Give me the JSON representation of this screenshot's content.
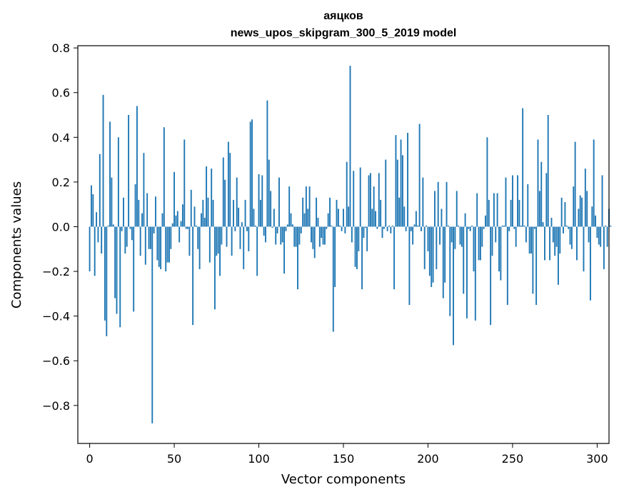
{
  "chart_data": {
    "type": "bar",
    "title": "аяцков",
    "subtitle": "news_upos_skipgram_300_5_2019 model",
    "xlabel": "Vector components",
    "ylabel": "Components values",
    "xlim": [
      -7,
      307
    ],
    "ylim": [
      -0.97,
      0.81
    ],
    "xticks": [
      0,
      50,
      100,
      150,
      200,
      250,
      300
    ],
    "xtick_labels": [
      "0",
      "50",
      "100",
      "150",
      "200",
      "250",
      "300"
    ],
    "yticks": [
      -0.8,
      -0.6,
      -0.4,
      -0.2,
      0.0,
      0.2,
      0.4,
      0.6,
      0.8
    ],
    "ytick_labels": [
      "−0.8",
      "−0.6",
      "−0.4",
      "−0.2",
      "0.0",
      "0.2",
      "0.4",
      "0.6",
      "0.8"
    ],
    "bar_color": "#1f77b4",
    "values": [
      -0.2,
      0.185,
      0.145,
      -0.22,
      0.065,
      -0.07,
      0.325,
      -0.12,
      0.59,
      -0.42,
      -0.49,
      0.005,
      0.47,
      0.22,
      0.01,
      -0.32,
      -0.39,
      0.4,
      -0.45,
      -0.02,
      0.13,
      -0.12,
      -0.09,
      0.5,
      -0.01,
      -0.06,
      -0.38,
      0.19,
      0.54,
      0.12,
      -0.13,
      0.06,
      0.33,
      -0.17,
      0.15,
      -0.1,
      -0.1,
      -0.88,
      -0.03,
      0.135,
      -0.15,
      -0.18,
      -0.19,
      0.06,
      0.445,
      -0.2,
      -0.16,
      -0.16,
      -0.1,
      0.015,
      0.245,
      0.05,
      0.07,
      -0.07,
      0.025,
      0.1,
      0.39,
      -0.01,
      -0.01,
      -0.13,
      0.165,
      -0.44,
      0.09,
      0.005,
      -0.1,
      -0.19,
      0.06,
      0.12,
      0.04,
      0.27,
      0.13,
      -0.16,
      0.26,
      0.12,
      -0.37,
      -0.13,
      -0.12,
      -0.22,
      -0.08,
      0.31,
      0.21,
      -0.09,
      0.38,
      0.33,
      -0.13,
      0.12,
      -0.02,
      0.22,
      0.085,
      -0.1,
      0.02,
      -0.19,
      0.12,
      -0.02,
      -0.11,
      0.47,
      0.48,
      0.08,
      0.005,
      -0.22,
      0.235,
      0.12,
      0.23,
      -0.04,
      -0.07,
      0.565,
      0.3,
      0.16,
      -0.005,
      0.08,
      -0.08,
      -0.03,
      0.22,
      -0.08,
      -0.07,
      -0.21,
      -0.02,
      0.01,
      0.18,
      0.06,
      0.01,
      -0.09,
      -0.09,
      -0.28,
      -0.08,
      -0.03,
      0.13,
      0.06,
      0.18,
      0.08,
      0.18,
      -0.07,
      -0.1,
      -0.14,
      0.13,
      0.04,
      -0.09,
      -0.05,
      -0.08,
      -0.08,
      -0.01,
      0.06,
      0.13,
      0.005,
      -0.47,
      -0.27,
      0.12,
      0.08,
      0.005,
      -0.02,
      0.08,
      -0.03,
      0.29,
      0.09,
      0.72,
      -0.07,
      0.25,
      -0.18,
      -0.19,
      -0.11,
      0.265,
      -0.28,
      -0.05,
      -0.005,
      -0.11,
      0.23,
      0.24,
      0.08,
      0.18,
      0.07,
      -0.01,
      0.24,
      0.12,
      -0.05,
      -0.01,
      0.3,
      -0.02,
      0.005,
      -0.03,
      0.005,
      -0.28,
      0.41,
      0.3,
      0.13,
      0.39,
      0.32,
      0.09,
      -0.02,
      0.42,
      -0.35,
      -0.02,
      -0.08,
      0.01,
      0.07,
      0.005,
      0.46,
      -0.02,
      0.22,
      -0.19,
      0.005,
      -0.11,
      -0.22,
      -0.27,
      -0.25,
      0.16,
      -0.19,
      0.2,
      -0.08,
      0.08,
      -0.32,
      -0.25,
      0.2,
      0.005,
      -0.4,
      -0.07,
      -0.53,
      -0.1,
      0.16,
      0.005,
      -0.08,
      -0.09,
      -0.3,
      0.06,
      -0.41,
      -0.01,
      -0.02,
      0.005,
      -0.2,
      -0.42,
      0.15,
      -0.15,
      -0.15,
      -0.09,
      -0.01,
      0.05,
      0.4,
      0.12,
      -0.44,
      -0.13,
      0.15,
      -0.07,
      0.15,
      -0.2,
      -0.24,
      0.005,
      0.005,
      0.22,
      -0.35,
      -0.02,
      0.12,
      0.23,
      -0.01,
      -0.09,
      0.23,
      0.12,
      0.005,
      0.53,
      0.005,
      -0.07,
      0.19,
      -0.12,
      -0.12,
      -0.3,
      -0.01,
      -0.35,
      0.39,
      0.16,
      0.29,
      0.02,
      -0.15,
      0.24,
      0.5,
      -0.15,
      0.04,
      -0.07,
      -0.13,
      -0.09,
      -0.26,
      -0.12,
      0.13,
      -0.03,
      0.11,
      0.005,
      -0.01,
      -0.08,
      -0.1,
      0.18,
      0.38,
      -0.15,
      0.08,
      0.14,
      0.13,
      -0.2,
      0.26,
      0.16,
      -0.07,
      -0.33,
      0.09,
      0.39,
      0.05,
      -0.05,
      -0.08,
      -0.09,
      0.23,
      -0.19,
      0.005,
      -0.09,
      0.08,
      0.005
    ]
  }
}
